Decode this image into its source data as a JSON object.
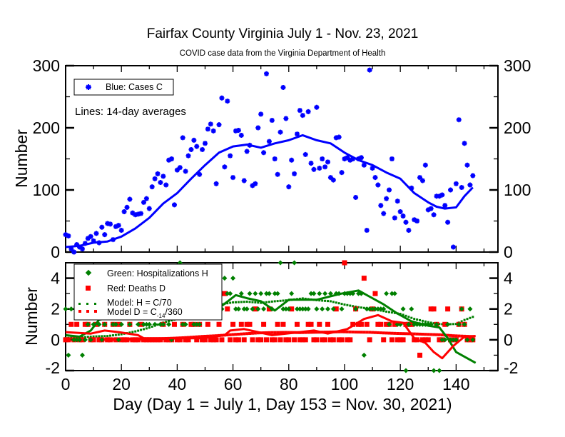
{
  "chart_data": [
    {
      "type": "scatter",
      "panel": "top",
      "title": "Fairfax County Virginia July 1 - Nov. 23, 2021",
      "subtitle": "COVID case data from the Virginia Department of Health",
      "ylabel": "Number",
      "xlim": [
        0,
        155
      ],
      "ylim": [
        0,
        300
      ],
      "yticks": [
        0,
        100,
        200,
        300
      ],
      "legend": [
        "Blue: Cases C"
      ],
      "annotation": "Lines: 14-day averages",
      "legend_placement": "top-left",
      "colors": {
        "cases": "#0000ff"
      },
      "cases": [
        28,
        26,
        5,
        0,
        12,
        8,
        5,
        14,
        22,
        25,
        18,
        30,
        15,
        40,
        28,
        46,
        45,
        20,
        41,
        43,
        35,
        65,
        72,
        85,
        63,
        60,
        61,
        62,
        80,
        86,
        70,
        105,
        118,
        126,
        112,
        122,
        108,
        148,
        150,
        76,
        132,
        136,
        184,
        130,
        155,
        165,
        180,
        170,
        125,
        165,
        175,
        198,
        206,
        195,
        110,
        205,
        248,
        137,
        243,
        155,
        120,
        195,
        196,
        188,
        115,
        162,
        172,
        107,
        110,
        200,
        222,
        160,
        287,
        178,
        212,
        150,
        125,
        193,
        265,
        215,
        105,
        148,
        126,
        190,
        228,
        220,
        157,
        226,
        143,
        133,
        233,
        135,
        150,
        137,
        145,
        120,
        116,
        184,
        185,
        128,
        150,
        152,
        148,
        150,
        88,
        150,
        152,
        140,
        35,
        293,
        135,
        120,
        108,
        75,
        62,
        86,
        100,
        150,
        55,
        82,
        65,
        58,
        48,
        35,
        103,
        52,
        50,
        120,
        115,
        140,
        68,
        70,
        60,
        90,
        90,
        92,
        75,
        48,
        100,
        8,
        110,
        213,
        104,
        175,
        140,
        108,
        123
      ],
      "cases_avg": {
        "days": [
          0,
          5,
          10,
          15,
          20,
          25,
          30,
          35,
          40,
          45,
          50,
          55,
          60,
          65,
          70,
          75,
          80,
          85,
          90,
          95,
          100,
          105,
          110,
          115,
          120,
          125,
          130,
          133,
          136,
          140,
          143,
          146
        ],
        "values": [
          8,
          10,
          15,
          17,
          25,
          38,
          55,
          78,
          95,
          118,
          140,
          160,
          170,
          173,
          168,
          175,
          180,
          188,
          180,
          175,
          160,
          148,
          140,
          128,
          118,
          95,
          80,
          73,
          70,
          72,
          90,
          104
        ]
      }
    },
    {
      "type": "scatter",
      "panel": "bottom",
      "ylabel": "Number",
      "xlabel": "Day (Day 1 = July 1, Day 153 = Nov. 30, 2021)",
      "xlim": [
        0,
        155
      ],
      "ylim": [
        -2,
        5
      ],
      "xticks": [
        0,
        20,
        40,
        60,
        80,
        100,
        120,
        140
      ],
      "yticks": [
        -2,
        0,
        2,
        4
      ],
      "legend": [
        "Green: Hospitalizations H",
        "Red: Deaths D",
        "Model: H = C/70",
        "Model D = C",
        "-14",
        "/360"
      ],
      "legend_placement": "top-left",
      "colors": {
        "hospitalizations": "#008000",
        "deaths": "#ff0000"
      },
      "hospitalizations": [
        2,
        -1,
        2,
        0,
        0,
        0,
        -1,
        0,
        1,
        0,
        1,
        2,
        1,
        0,
        1,
        2,
        2,
        1,
        1,
        0,
        1,
        2,
        2,
        1,
        2,
        3,
        1,
        2,
        1,
        1,
        1,
        2,
        1,
        3,
        1,
        1,
        2,
        1,
        0,
        3,
        2,
        5,
        1,
        1,
        2,
        2,
        1,
        1,
        1,
        3,
        2,
        3,
        4,
        4,
        2,
        3,
        2,
        4,
        3,
        3,
        4,
        2,
        2,
        3,
        2,
        2,
        3,
        2,
        3,
        2,
        3,
        2,
        3,
        3,
        2,
        3,
        3,
        5,
        2,
        2,
        2,
        3,
        5,
        2,
        2,
        2,
        2,
        2,
        3,
        3,
        2,
        3,
        2,
        3,
        2,
        3,
        2,
        3,
        3,
        2,
        3,
        3,
        3,
        3,
        2,
        3,
        3,
        -1,
        2,
        2,
        2,
        2,
        2,
        2,
        2,
        3,
        1,
        3,
        3,
        1,
        1,
        2,
        -2,
        1,
        2,
        1,
        1,
        1,
        1,
        1,
        1,
        1,
        -2,
        1,
        -2,
        0,
        0,
        1,
        0,
        0,
        0,
        1,
        2,
        1,
        0,
        2,
        0
      ],
      "deaths": [
        0,
        0,
        1,
        0,
        1,
        0,
        0,
        1,
        1,
        0,
        0,
        1,
        0,
        0,
        1,
        0,
        0,
        1,
        0,
        1,
        0,
        0,
        0,
        1,
        0,
        0,
        0,
        1,
        0,
        0,
        0,
        0,
        0,
        0,
        0,
        1,
        0,
        0,
        0,
        1,
        0,
        0,
        1,
        0,
        0,
        1,
        1,
        0,
        1,
        0,
        0,
        1,
        0,
        0,
        0,
        1,
        0,
        3,
        2,
        0,
        1,
        0,
        0,
        1,
        0,
        1,
        1,
        0,
        2,
        0,
        0,
        1,
        0,
        2,
        0,
        0,
        1,
        0,
        1,
        0,
        0,
        2,
        0,
        1,
        0,
        0,
        0,
        1,
        1,
        0,
        0,
        1,
        0,
        0,
        1,
        0,
        0,
        2,
        0,
        0,
        5,
        0,
        0,
        1,
        2,
        1,
        1,
        4,
        1,
        0,
        2,
        3,
        1,
        1,
        0,
        1,
        1,
        0,
        1,
        0,
        0,
        0,
        1,
        1,
        1,
        0,
        0,
        -1,
        0,
        0,
        0,
        2,
        2,
        1,
        0,
        0,
        1,
        2,
        0,
        0,
        0,
        1,
        2,
        1,
        0,
        0,
        0
      ],
      "hospitalizations_avg": {
        "days": [
          0,
          5,
          9,
          12,
          15,
          20,
          30,
          40,
          50,
          56,
          61,
          65,
          70,
          75,
          80,
          90,
          99,
          105,
          109,
          114,
          119,
          124,
          129,
          134,
          137,
          140,
          143,
          147
        ],
        "values": [
          0.3,
          0.2,
          0.6,
          1.3,
          1.4,
          1.6,
          1.8,
          2.0,
          2.1,
          2.2,
          2.9,
          2.7,
          2.5,
          1.9,
          2.6,
          2.6,
          3.0,
          3.2,
          2.8,
          2.3,
          1.7,
          1.2,
          0.95,
          0.8,
          0.1,
          -0.8,
          -1.1,
          -1.5
        ]
      },
      "deaths_avg": {
        "days": [
          0,
          9,
          14,
          19,
          26,
          28,
          49,
          57,
          59,
          64,
          69,
          74,
          84,
          89,
          94,
          101,
          107,
          112,
          117,
          121,
          125,
          129,
          132,
          135,
          139,
          143,
          147
        ],
        "values": [
          0.5,
          0.4,
          0.6,
          0.5,
          0.3,
          0.1,
          0.1,
          0.3,
          0.6,
          0.7,
          0.5,
          0.3,
          0.5,
          0.6,
          0.4,
          0.7,
          1.35,
          1.6,
          1.2,
          1.1,
          0.1,
          -0.2,
          -0.8,
          -1.2,
          -0.4,
          0.2,
          0.25
        ]
      }
    }
  ]
}
